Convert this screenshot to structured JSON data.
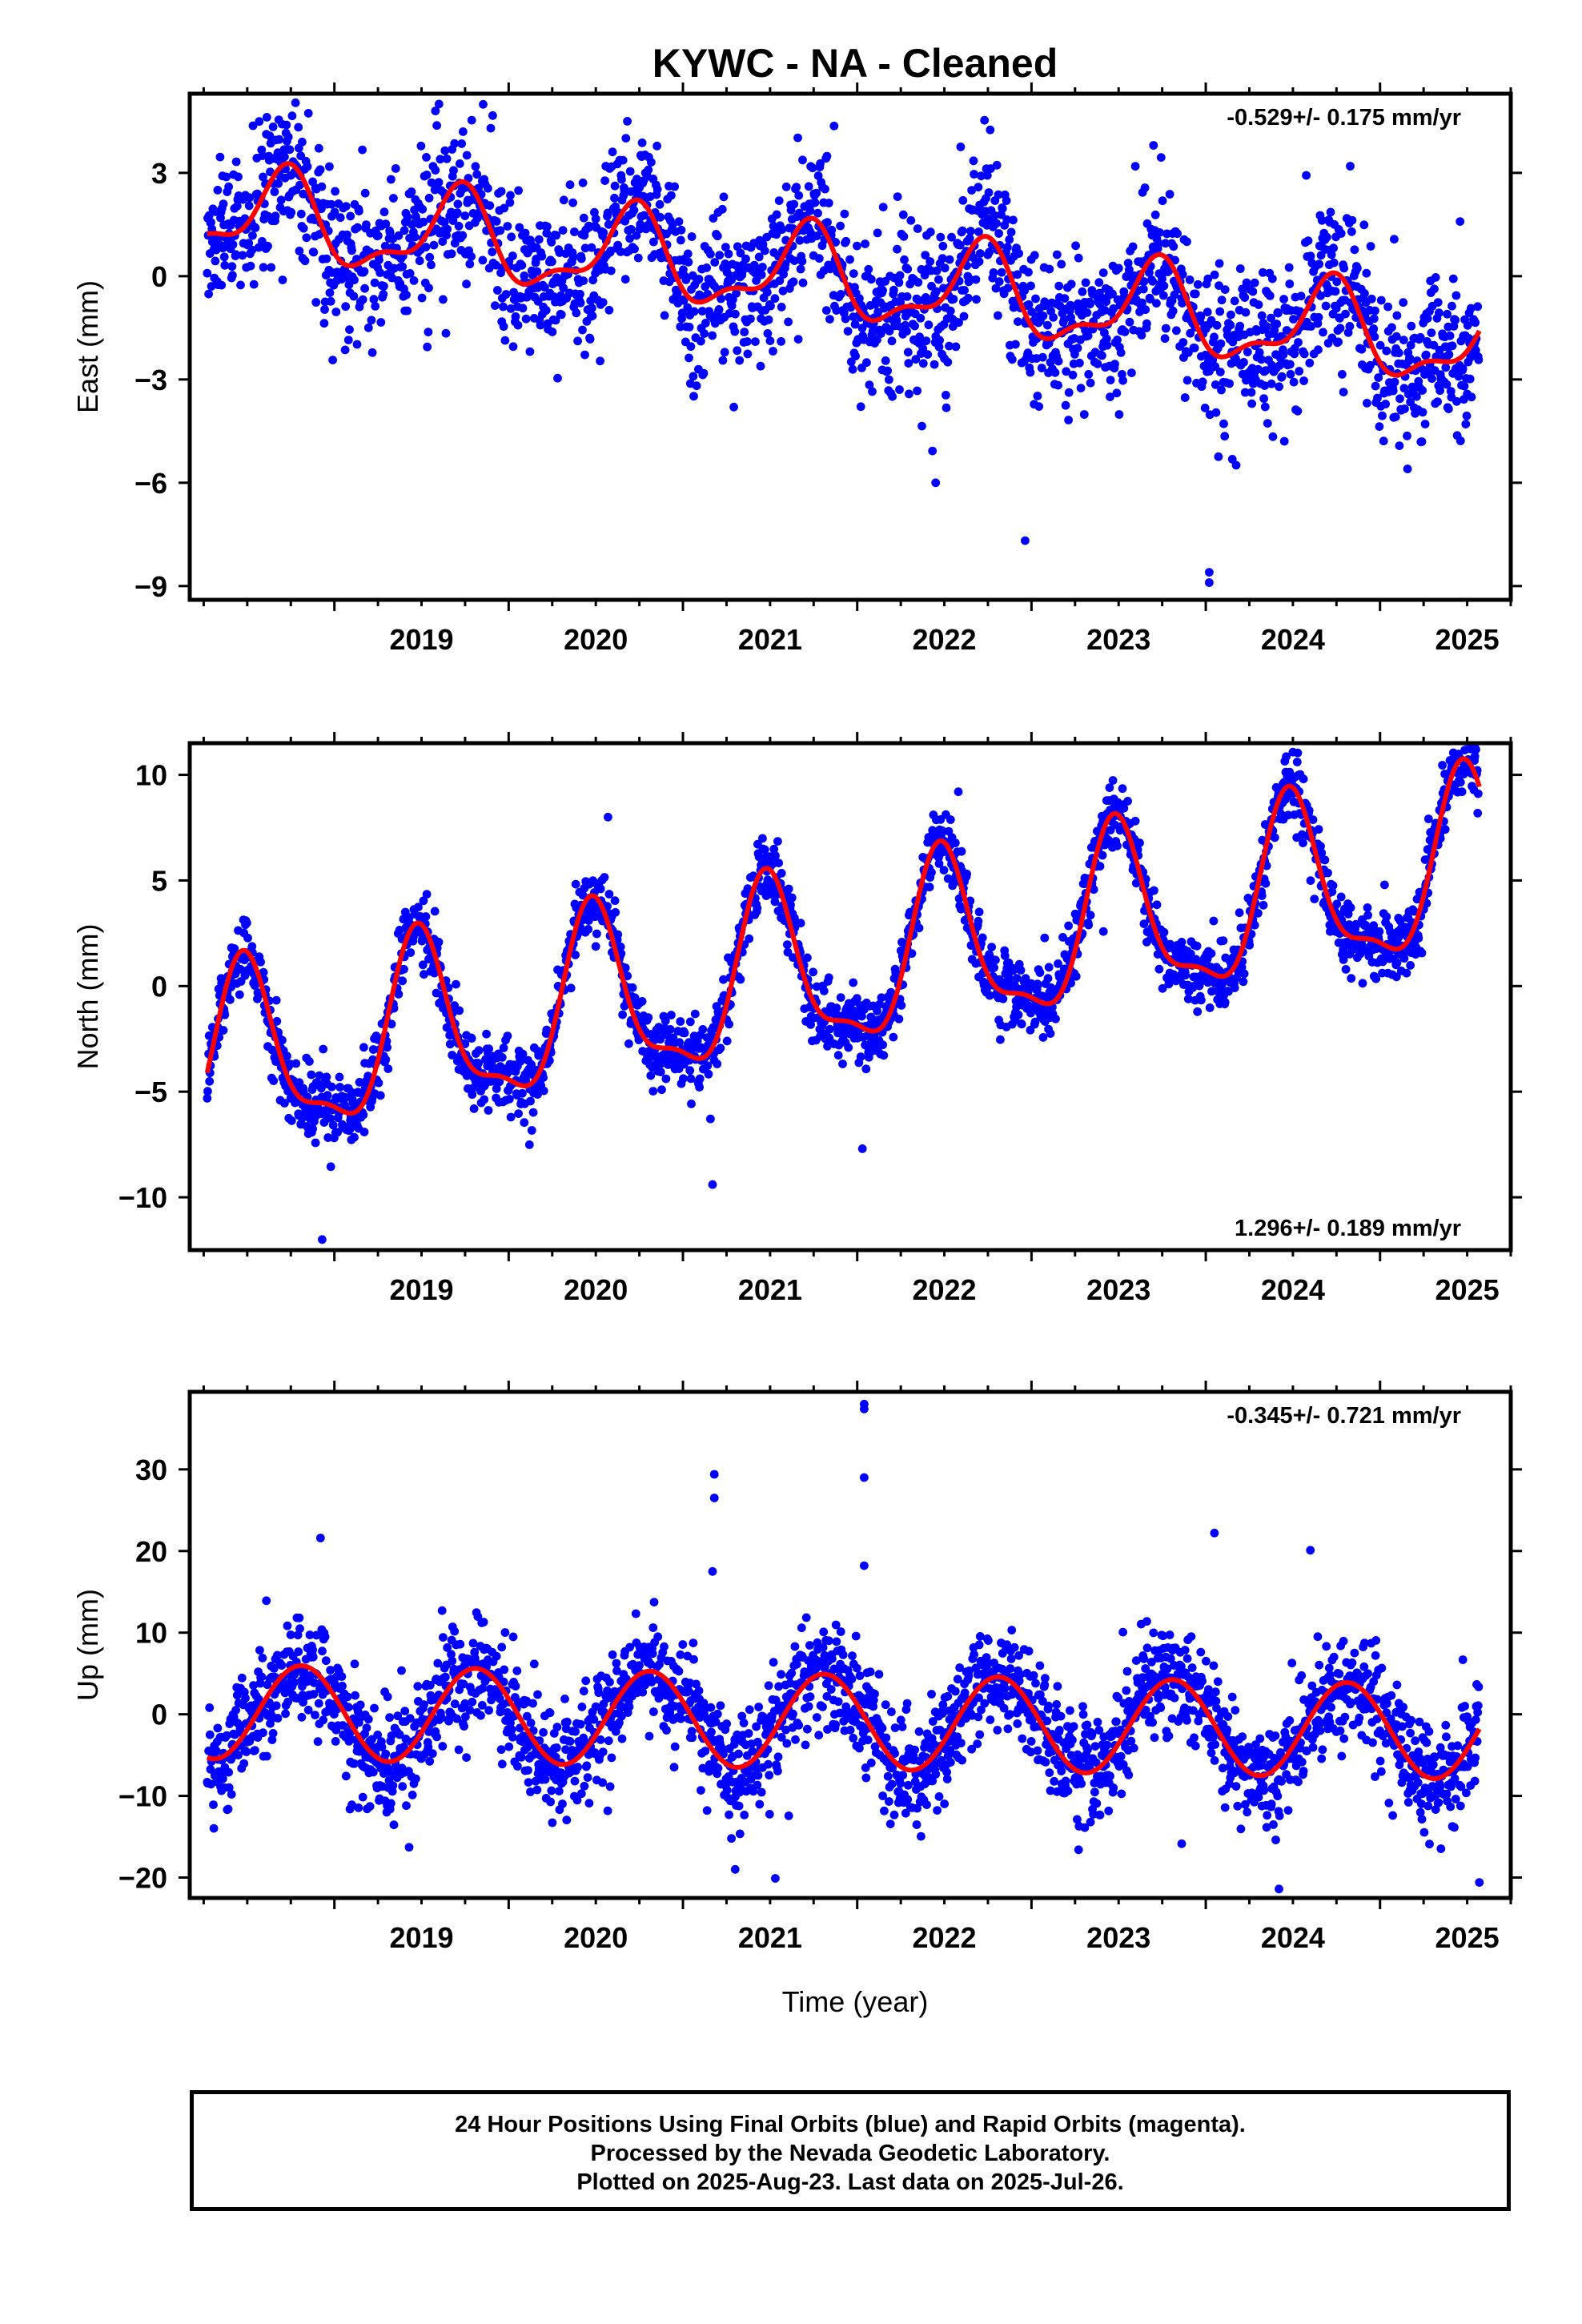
{
  "title": "KYWC  - NA - Cleaned",
  "xlabel": "Time (year)",
  "footer": {
    "line1": "24 Hour Positions Using Final Orbits (blue) and Rapid Orbits (magenta).",
    "line2": "Processed by the Nevada Geodetic Laboratory.",
    "line3": "Plotted on 2025-Aug-23. Last data on 2025-Jul-26."
  },
  "colors": {
    "final_orbits": "#0000ff",
    "model": "#ff0000",
    "axes": "#000000"
  },
  "chart_data": [
    {
      "type": "scatter",
      "component": "East",
      "ylabel": "East (mm)",
      "rate_label": "-0.529+/- 0.175 mm/yr",
      "rate_position": "top-right",
      "xlim": [
        2018.17,
        2025.75
      ],
      "ylim": [
        -9.4,
        5.3
      ],
      "yticks": [
        3,
        0,
        -3,
        -6,
        -9
      ],
      "xticks": [
        2019,
        2020,
        2021,
        2022,
        2023,
        2024,
        2025
      ],
      "data_start": 2018.27,
      "data_end": 2025.57,
      "trend_mm_per_yr": -0.529,
      "offset_mm": 1.85,
      "annual_amplitude_mm": 1.2,
      "annual_phase_yr": 2018.46,
      "semiannual_amplitude_mm": 0.5,
      "semiannual_phase_yr": 2018.63,
      "scatter_sd_mm": 1.1,
      "outliers": [
        [
          2024.02,
          -8.6
        ],
        [
          2024.02,
          -8.9
        ],
        [
          2022.45,
          -6.0
        ],
        [
          2019.6,
          5.0
        ],
        [
          2019.58,
          4.8
        ],
        [
          2023.7,
          3.8
        ]
      ]
    },
    {
      "type": "scatter",
      "component": "North",
      "ylabel": "North (mm)",
      "rate_label": "1.296+/- 0.189 mm/yr",
      "rate_position": "bottom-right",
      "xlim": [
        2018.17,
        2025.75
      ],
      "ylim": [
        -12.5,
        11.5
      ],
      "yticks": [
        10,
        5,
        0,
        -5,
        -10
      ],
      "xticks": [
        2019,
        2020,
        2021,
        2022,
        2023,
        2024,
        2025
      ],
      "data_start": 2018.27,
      "data_end": 2025.57,
      "trend_mm_per_yr": 1.296,
      "offset_mm": -3.85,
      "annual_amplitude_mm": 4.0,
      "annual_phase_yr": 2018.24,
      "semiannual_amplitude_mm": 1.3,
      "semiannual_phase_yr": 2018.34,
      "scatter_sd_mm": 0.8,
      "outliers": [
        [
          2018.93,
          -12.0
        ],
        [
          2021.17,
          -9.4
        ],
        [
          2022.03,
          -7.7
        ],
        [
          2025.55,
          11.2
        ],
        [
          2020.57,
          8.0
        ],
        [
          2022.58,
          9.2
        ]
      ]
    },
    {
      "type": "scatter",
      "component": "Up",
      "ylabel": "Up (mm)",
      "rate_label": "-0.345+/- 0.721 mm/yr",
      "rate_position": "top-right",
      "xlim": [
        2018.17,
        2025.75
      ],
      "ylim": [
        -22.5,
        39.5
      ],
      "yticks": [
        30,
        20,
        10,
        0,
        -10,
        -20
      ],
      "xticks": [
        2019,
        2020,
        2021,
        2022,
        2023,
        2024,
        2025
      ],
      "data_start": 2018.27,
      "data_end": 2025.57,
      "trend_mm_per_yr": -0.345,
      "offset_mm": 0.35,
      "annual_amplitude_mm": 5.8,
      "annual_phase_yr": 2018.56,
      "semiannual_amplitude_mm": 0.0,
      "semiannual_phase_yr": 2018.5,
      "scatter_sd_mm": 3.3,
      "outliers": [
        [
          2022.04,
          38.0
        ],
        [
          2022.04,
          37.4
        ],
        [
          2022.04,
          29.0
        ],
        [
          2021.18,
          29.4
        ],
        [
          2021.18,
          26.5
        ],
        [
          2021.17,
          17.5
        ],
        [
          2022.04,
          18.2
        ],
        [
          2024.05,
          22.2
        ],
        [
          2018.92,
          21.6
        ],
        [
          2024.6,
          20.1
        ],
        [
          2021.53,
          -20.1
        ],
        [
          2024.42,
          -21.4
        ],
        [
          2025.57,
          -20.6
        ],
        [
          2021.3,
          -19.0
        ]
      ]
    }
  ]
}
